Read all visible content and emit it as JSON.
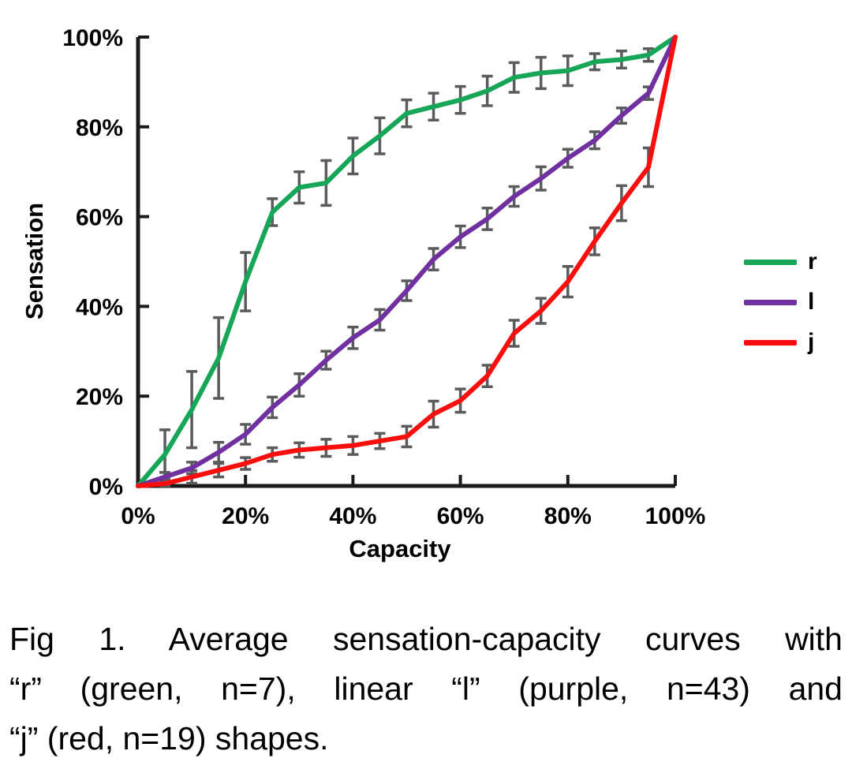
{
  "figure": {
    "y_axis_title": "Sensation",
    "x_axis_title": "Capacity"
  },
  "legend": {
    "items": [
      {
        "label": "r",
        "color": "#17A657"
      },
      {
        "label": "l",
        "color": "#7030A0"
      },
      {
        "label": "j",
        "color": "#F90D0D"
      }
    ]
  },
  "caption": {
    "lines": [
      "Fig 1. Average sensation-capacity curves with",
      "“r” (green, n=7), linear “l” (purple, n=43) and",
      "“j” (red, n=19) shapes."
    ]
  },
  "chart_data": {
    "type": "line",
    "title": "",
    "xlabel": "Capacity",
    "ylabel": "Sensation",
    "xlim": [
      0,
      100
    ],
    "ylim": [
      0,
      100
    ],
    "grid": false,
    "legend_position": "right",
    "error_bars": true,
    "error_bar_color": "#595B5D",
    "axis_color": "#1A1A1A",
    "x_ticks": [
      0,
      20,
      40,
      60,
      80,
      100
    ],
    "y_ticks": [
      0,
      20,
      40,
      60,
      80,
      100
    ],
    "x_tick_labels": [
      "0%",
      "20%",
      "40%",
      "60%",
      "80%",
      "100%"
    ],
    "y_tick_labels": [
      "0%",
      "20%",
      "40%",
      "60%",
      "80%",
      "100%"
    ],
    "x": [
      0,
      5,
      10,
      15,
      20,
      25,
      30,
      35,
      40,
      45,
      50,
      55,
      60,
      65,
      70,
      75,
      80,
      85,
      90,
      95,
      100
    ],
    "series": [
      {
        "name": "r",
        "color": "#17A657",
        "values": [
          0,
          7,
          17,
          28.5,
          45.5,
          61,
          66.5,
          67.5,
          73.5,
          78,
          83,
          84.5,
          86,
          88,
          91,
          92,
          92.5,
          94.5,
          95,
          96,
          100
        ],
        "errors": [
          0,
          5.5,
          8.5,
          9,
          6.5,
          3,
          3.5,
          5,
          4,
          4,
          3,
          3,
          3,
          3.3,
          3.3,
          3.5,
          3.3,
          1.8,
          1.9,
          1.4,
          0
        ]
      },
      {
        "name": "l",
        "color": "#7030A0",
        "values": [
          0,
          2,
          4,
          7.5,
          11.5,
          17.5,
          22.5,
          28,
          33,
          37,
          43.5,
          50.5,
          55.5,
          59.5,
          64.5,
          68.5,
          73,
          77,
          82.5,
          87.5,
          100
        ],
        "errors": [
          0,
          1,
          1.3,
          2.2,
          2.2,
          2.3,
          2.5,
          2,
          2.4,
          2.3,
          2.2,
          2.4,
          2.4,
          2.4,
          2.2,
          2.6,
          2,
          1.9,
          1.7,
          1.4,
          0
        ]
      },
      {
        "name": "j",
        "color": "#F90D0D",
        "values": [
          0,
          0.5,
          2,
          3.5,
          5,
          7,
          8,
          8.5,
          9,
          10,
          11,
          16,
          19,
          24.5,
          34,
          39,
          45.5,
          54.5,
          63,
          71,
          100
        ],
        "errors": [
          0,
          0.5,
          1.4,
          1.5,
          1.3,
          1.5,
          1.6,
          1.9,
          2,
          1.7,
          2.3,
          2.9,
          2.6,
          2.4,
          2.9,
          2.8,
          3.4,
          3,
          3.9,
          4.3,
          0
        ]
      }
    ]
  }
}
